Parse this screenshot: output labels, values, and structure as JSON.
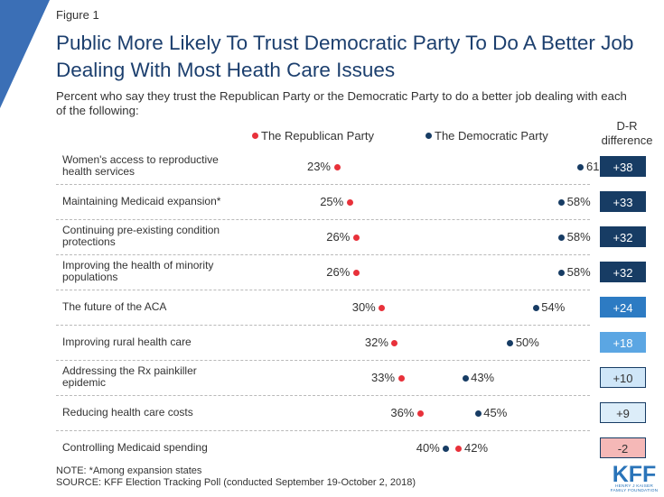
{
  "figure_label": "Figure 1",
  "title": "Public More Likely To Trust Democratic Party To Do A Better Job Dealing With Most Heath Care Issues",
  "subtitle": "Percent who say they trust the Republican Party or the Democratic Party to do a better job dealing with each of the following:",
  "diff_header": "D-R difference",
  "note": "NOTE: *Among expansion states",
  "source": "SOURCE: KFF Election Tracking Poll (conducted September 19-October 2, 2018)",
  "logo": {
    "main": "KFF",
    "sub1": "HENRY J KAISER",
    "sub2": "FAMILY FOUNDATION"
  },
  "colors": {
    "republican": "#e8313a",
    "democratic": "#173c64",
    "accent": "#3b6fb6"
  },
  "chart_data": {
    "type": "dot",
    "series": [
      {
        "name": "The Republican Party",
        "color": "#e8313a"
      },
      {
        "name": "The Democratic Party",
        "color": "#173c64"
      }
    ],
    "items": [
      {
        "label": "Women's access to reproductive health services",
        "rep": 23,
        "dem": 61,
        "diff": "+38",
        "diff_bg": "#173c64",
        "diff_fg": "#ffffff"
      },
      {
        "label": "Maintaining Medicaid expansion*",
        "rep": 25,
        "dem": 58,
        "diff": "+33",
        "diff_bg": "#173c64",
        "diff_fg": "#ffffff"
      },
      {
        "label": "Continuing pre-existing condition protections",
        "rep": 26,
        "dem": 58,
        "diff": "+32",
        "diff_bg": "#173c64",
        "diff_fg": "#ffffff"
      },
      {
        "label": "Improving the health of minority populations",
        "rep": 26,
        "dem": 58,
        "diff": "+32",
        "diff_bg": "#173c64",
        "diff_fg": "#ffffff"
      },
      {
        "label": "The future of the ACA",
        "rep": 30,
        "dem": 54,
        "diff": "+24",
        "diff_bg": "#2d7bc3",
        "diff_fg": "#ffffff"
      },
      {
        "label": "Improving rural health care",
        "rep": 32,
        "dem": 50,
        "diff": "+18",
        "diff_bg": "#5ba6e3",
        "diff_fg": "#ffffff"
      },
      {
        "label": "Addressing the Rx painkiller epidemic",
        "rep": 33,
        "dem": 43,
        "diff": "+10",
        "diff_bg": "#cfe6f8",
        "diff_fg": "#333333"
      },
      {
        "label": "Reducing health care costs",
        "rep": 36,
        "dem": 45,
        "diff": "+9",
        "diff_bg": "#dcedf9",
        "diff_fg": "#333333"
      },
      {
        "label": "Controlling Medicaid spending",
        "rep": 42,
        "dem": 40,
        "diff": "-2",
        "diff_bg": "#f5b8b7",
        "diff_fg": "#333333"
      }
    ],
    "value_suffix": "%"
  }
}
